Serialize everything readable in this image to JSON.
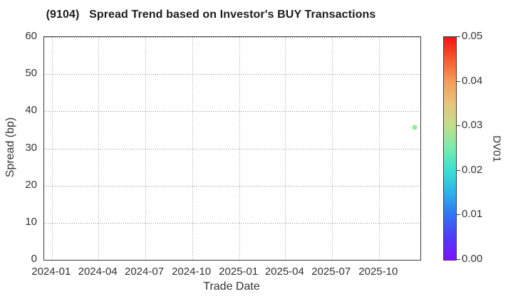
{
  "chart_data": {
    "type": "scatter",
    "title": "(9104)   Spread Trend based on Investor's BUY Transactions",
    "xlabel": "Trade Date",
    "ylabel": "Spread (bp)",
    "grid": true,
    "x_axis": {
      "type": "date",
      "min": "2023-12-17",
      "max": "2025-12-21",
      "tick_dates": [
        "2024-01-01",
        "2024-04-01",
        "2024-07-01",
        "2024-10-01",
        "2025-01-01",
        "2025-04-01",
        "2025-07-01",
        "2025-10-01"
      ],
      "tick_labels": [
        "2024-01",
        "2024-04",
        "2024-07",
        "2024-10",
        "2025-01",
        "2025-04",
        "2025-07",
        "2025-10"
      ]
    },
    "y_axis": {
      "min": 0,
      "max": 60,
      "ticks": [
        0,
        10,
        20,
        30,
        40,
        50,
        60
      ],
      "tick_labels": [
        "0",
        "10",
        "20",
        "30",
        "40",
        "50",
        "60"
      ]
    },
    "points": [
      {
        "trade_date": "2025-12-10",
        "spread_bp": 35.7,
        "dv01": 0.028,
        "color": "#90ee90"
      }
    ],
    "colorbar": {
      "label": "DV01",
      "min": 0.0,
      "max": 0.05,
      "tick_values": [
        0.0,
        0.01,
        0.02,
        0.03,
        0.04,
        0.05
      ],
      "tick_labels": [
        "0.00",
        "0.01",
        "0.02",
        "0.03",
        "0.04",
        "0.05"
      ],
      "gradient_stops": [
        {
          "value": 0.0,
          "color": "#7c12fb"
        },
        {
          "value": 0.005,
          "color": "#5439f9"
        },
        {
          "value": 0.01,
          "color": "#3173f2"
        },
        {
          "value": 0.015,
          "color": "#2fb0e9"
        },
        {
          "value": 0.02,
          "color": "#3cdfd5"
        },
        {
          "value": 0.025,
          "color": "#77ecae"
        },
        {
          "value": 0.03,
          "color": "#bfdf8d"
        },
        {
          "value": 0.035,
          "color": "#e5c67f"
        },
        {
          "value": 0.04,
          "color": "#f49c5b"
        },
        {
          "value": 0.045,
          "color": "#f45b2f"
        },
        {
          "value": 0.05,
          "color": "#f31111"
        }
      ]
    }
  }
}
